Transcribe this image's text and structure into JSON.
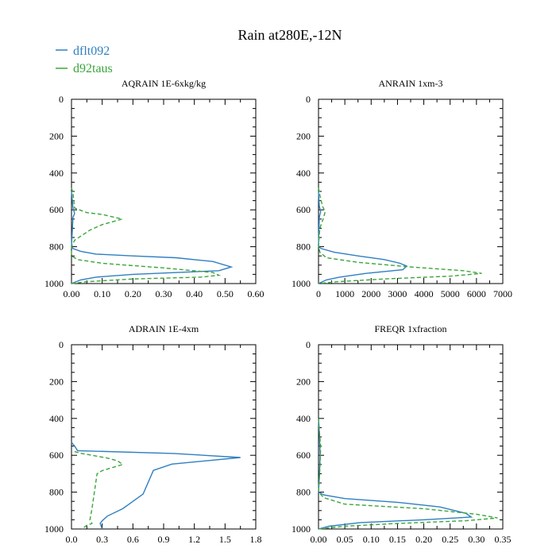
{
  "figure": {
    "title": "Rain at280E,-12N",
    "legend": [
      {
        "name": "dflt092",
        "color": "#2f7fc1",
        "dash": "solid"
      },
      {
        "name": "d92taus",
        "color": "#3aa53a",
        "dash": "dashed"
      }
    ]
  },
  "chart_data": [
    {
      "type": "line",
      "title": "AQRAIN  1E-6xkg/kg",
      "xlim": [
        0,
        0.6
      ],
      "ylim": [
        0,
        1000
      ],
      "y_inverted": true,
      "xticks": [
        0.0,
        0.1,
        0.2,
        0.3,
        0.4,
        0.5,
        0.6
      ],
      "xtick_labels": [
        "0.00",
        "0.10",
        "0.20",
        "0.30",
        "0.40",
        "0.50",
        "0.60"
      ],
      "yticks": [
        0,
        200,
        400,
        600,
        800,
        1000
      ],
      "ytick_labels": [
        "0",
        "200",
        "400",
        "600",
        "800",
        "1000"
      ],
      "series": [
        {
          "name": "dflt092",
          "points": [
            [
              0,
              500
            ],
            [
              0.005,
              590
            ],
            [
              0.01,
              620
            ],
            [
              0.005,
              640
            ],
            [
              0,
              800
            ],
            [
              0.005,
              810
            ],
            [
              0.03,
              825
            ],
            [
              0.08,
              840
            ],
            [
              0.2,
              850
            ],
            [
              0.34,
              860
            ],
            [
              0.46,
              880
            ],
            [
              0.52,
              910
            ],
            [
              0.48,
              930
            ],
            [
              0.2,
              950
            ],
            [
              0.08,
              965
            ],
            [
              0.03,
              980
            ],
            [
              0,
              1000
            ]
          ]
        },
        {
          "name": "d92taus",
          "points": [
            [
              0,
              480
            ],
            [
              0.005,
              510
            ],
            [
              0.01,
              590
            ],
            [
              0.05,
              615
            ],
            [
              0.1,
              625
            ],
            [
              0.165,
              650
            ],
            [
              0.1,
              680
            ],
            [
              0.06,
              710
            ],
            [
              0.01,
              765
            ],
            [
              0,
              800
            ],
            [
              0,
              850
            ],
            [
              0.02,
              870
            ],
            [
              0.1,
              890
            ],
            [
              0.3,
              915
            ],
            [
              0.46,
              940
            ],
            [
              0.48,
              955
            ],
            [
              0.42,
              965
            ],
            [
              0.2,
              975
            ],
            [
              0.05,
              990
            ],
            [
              0,
              1000
            ]
          ]
        }
      ]
    },
    {
      "type": "line",
      "title": "ANRAIN  1xm-3",
      "xlim": [
        0,
        7000
      ],
      "ylim": [
        0,
        1000
      ],
      "y_inverted": true,
      "xticks": [
        0,
        1000,
        2000,
        3000,
        4000,
        5000,
        6000,
        7000
      ],
      "xtick_labels": [
        "0",
        "1000",
        "2000",
        "3000",
        "4000",
        "5000",
        "6000",
        "7000"
      ],
      "yticks": [
        0,
        200,
        400,
        600,
        800,
        1000
      ],
      "ytick_labels": [
        "0",
        "200",
        "400",
        "600",
        "800",
        "1000"
      ],
      "series": [
        {
          "name": "dflt092",
          "points": [
            [
              0,
              500
            ],
            [
              30,
              580
            ],
            [
              80,
              610
            ],
            [
              30,
              640
            ],
            [
              0,
              800
            ],
            [
              100,
              810
            ],
            [
              600,
              830
            ],
            [
              1500,
              850
            ],
            [
              2500,
              870
            ],
            [
              3100,
              890
            ],
            [
              3350,
              905
            ],
            [
              3200,
              925
            ],
            [
              1800,
              945
            ],
            [
              800,
              965
            ],
            [
              300,
              980
            ],
            [
              0,
              1000
            ]
          ]
        },
        {
          "name": "d92taus",
          "points": [
            [
              0,
              480
            ],
            [
              50,
              520
            ],
            [
              150,
              580
            ],
            [
              250,
              610
            ],
            [
              200,
              640
            ],
            [
              50,
              700
            ],
            [
              0,
              790
            ],
            [
              50,
              830
            ],
            [
              300,
              860
            ],
            [
              1500,
              885
            ],
            [
              3500,
              910
            ],
            [
              5500,
              930
            ],
            [
              6200,
              945
            ],
            [
              5000,
              960
            ],
            [
              2500,
              975
            ],
            [
              700,
              990
            ],
            [
              0,
              1000
            ]
          ]
        }
      ]
    },
    {
      "type": "line",
      "title": "ADRAIN  1E-4xm",
      "xlim": [
        0,
        1.8
      ],
      "ylim": [
        0,
        1000
      ],
      "y_inverted": true,
      "xticks": [
        0.0,
        0.3,
        0.6,
        0.9,
        1.2,
        1.5,
        1.8
      ],
      "xtick_labels": [
        "0.0",
        "0.3",
        "0.6",
        "0.9",
        "1.2",
        "1.5",
        "1.8"
      ],
      "yticks": [
        0,
        200,
        400,
        600,
        800,
        1000
      ],
      "ytick_labels": [
        "0",
        "200",
        "400",
        "600",
        "800",
        "1000"
      ],
      "series": [
        {
          "name": "dflt092",
          "points": [
            [
              0,
              530
            ],
            [
              0.03,
              550
            ],
            [
              0.06,
              575
            ],
            [
              1.0,
              590
            ],
            [
              1.65,
              612
            ],
            [
              0.98,
              648
            ],
            [
              0.8,
              682
            ],
            [
              0.7,
              810
            ],
            [
              0.65,
              830
            ],
            [
              0.5,
              890
            ],
            [
              0.35,
              930
            ],
            [
              0.3,
              955
            ],
            [
              0.28,
              970
            ],
            [
              0.3,
              1000
            ]
          ]
        },
        {
          "name": "d92taus",
          "points": [
            [
              0.03,
              580
            ],
            [
              0.1,
              590
            ],
            [
              0.2,
              600
            ],
            [
              0.35,
              615
            ],
            [
              0.45,
              630
            ],
            [
              0.5,
              650
            ],
            [
              0.3,
              683
            ],
            [
              0.25,
              700
            ],
            [
              0.2,
              890
            ],
            [
              0.18,
              950
            ],
            [
              0.2,
              970
            ],
            [
              0.15,
              980
            ],
            [
              0.1,
              1000
            ]
          ]
        }
      ]
    },
    {
      "type": "line",
      "title": "FREQR  1xfraction",
      "xlim": [
        0,
        0.35
      ],
      "ylim": [
        0,
        1000
      ],
      "y_inverted": true,
      "xticks": [
        0.0,
        0.05,
        0.1,
        0.15,
        0.2,
        0.25,
        0.3,
        0.35
      ],
      "xtick_labels": [
        "0.00",
        "0.05",
        "0.10",
        "0.15",
        "0.20",
        "0.25",
        "0.30",
        "0.35"
      ],
      "yticks": [
        0,
        200,
        400,
        600,
        800,
        1000
      ],
      "ytick_labels": [
        "0",
        "200",
        "400",
        "600",
        "800",
        "1000"
      ],
      "series": [
        {
          "name": "dflt092",
          "points": [
            [
              0,
              400
            ],
            [
              0.002,
              500
            ],
            [
              0.003,
              600
            ],
            [
              0.002,
              700
            ],
            [
              0,
              800
            ],
            [
              0.01,
              815
            ],
            [
              0.05,
              835
            ],
            [
              0.15,
              855
            ],
            [
              0.23,
              880
            ],
            [
              0.28,
              915
            ],
            [
              0.29,
              935
            ],
            [
              0.2,
              950
            ],
            [
              0.08,
              965
            ],
            [
              0.02,
              985
            ],
            [
              0,
              1000
            ]
          ]
        },
        {
          "name": "d92taus",
          "points": [
            [
              0,
              400
            ],
            [
              0.002,
              480
            ],
            [
              0.004,
              550
            ],
            [
              0.003,
              650
            ],
            [
              0.001,
              750
            ],
            [
              0,
              800
            ],
            [
              0.01,
              830
            ],
            [
              0.05,
              865
            ],
            [
              0.2,
              890
            ],
            [
              0.3,
              920
            ],
            [
              0.34,
              940
            ],
            [
              0.28,
              955
            ],
            [
              0.15,
              970
            ],
            [
              0.05,
              985
            ],
            [
              0,
              1000
            ]
          ]
        }
      ]
    }
  ]
}
